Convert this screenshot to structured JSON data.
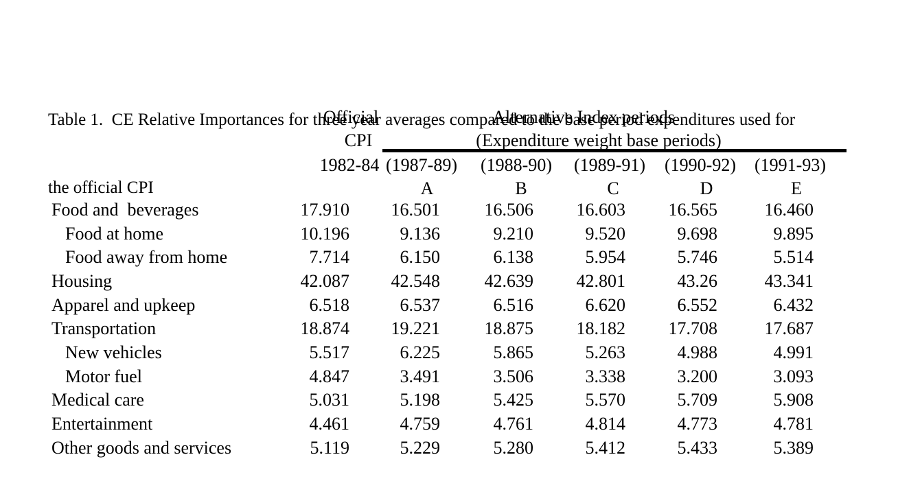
{
  "page": {
    "background": "#ffffff",
    "text_color": "#000000"
  },
  "title_lines": [
    "Table 1.  CE Relative Importances for three year averages compared to the base period expenditures used for",
    "the official CPI"
  ],
  "table": {
    "group_headers": {
      "official_line1": "Official",
      "official_line2": "CPI",
      "alternative_line1": "Alternative Index periods",
      "alternative_line2": "(Expenditure weight base periods)"
    },
    "period_headers": [
      "1982-84",
      "(1987-89)",
      "(1988-90)",
      "(1989-91)",
      "(1990-92)",
      "(1991-93)"
    ],
    "index_letters": [
      "A",
      "B",
      "C",
      "D",
      "E"
    ],
    "rows": [
      {
        "label": "Food and  beverages",
        "level": 0,
        "values": [
          "17.910",
          "16.501",
          "16.506",
          "16.603",
          "16.565",
          "16.460"
        ]
      },
      {
        "label": "Food at home",
        "level": 1,
        "values": [
          "10.196",
          "9.136",
          "9.210",
          "9.520",
          "9.698",
          "9.895"
        ]
      },
      {
        "label": "Food away from home",
        "level": 1,
        "values": [
          "7.714",
          "6.150",
          "6.138",
          "5.954",
          "5.746",
          "5.514"
        ]
      },
      {
        "label": "Housing",
        "level": 0,
        "values": [
          "42.087",
          "42.548",
          "42.639",
          "42.801",
          "43.26",
          "43.341"
        ]
      },
      {
        "label": "Apparel and upkeep",
        "level": 0,
        "values": [
          "6.518",
          "6.537",
          "6.516",
          "6.620",
          "6.552",
          "6.432"
        ]
      },
      {
        "label": "Transportation",
        "level": 0,
        "values": [
          "18.874",
          "19.221",
          "18.875",
          "18.182",
          "17.708",
          "17.687"
        ]
      },
      {
        "label": "New vehicles",
        "level": 1,
        "values": [
          "5.517",
          "6.225",
          "5.865",
          "5.263",
          "4.988",
          "4.991"
        ]
      },
      {
        "label": "Motor fuel",
        "level": 1,
        "values": [
          "4.847",
          "3.491",
          "3.506",
          "3.338",
          "3.200",
          "3.093"
        ]
      },
      {
        "label": "Medical care",
        "level": 0,
        "values": [
          "5.031",
          "5.198",
          "5.425",
          "5.570",
          "5.709",
          "5.908"
        ]
      },
      {
        "label": "Entertainment",
        "level": 0,
        "values": [
          "4.461",
          "4.759",
          "4.761",
          "4.814",
          "4.773",
          "4.781"
        ]
      },
      {
        "label": "Other goods and services",
        "level": 0,
        "values": [
          "5.119",
          "5.229",
          "5.280",
          "5.412",
          "5.433",
          "5.389"
        ]
      }
    ]
  }
}
